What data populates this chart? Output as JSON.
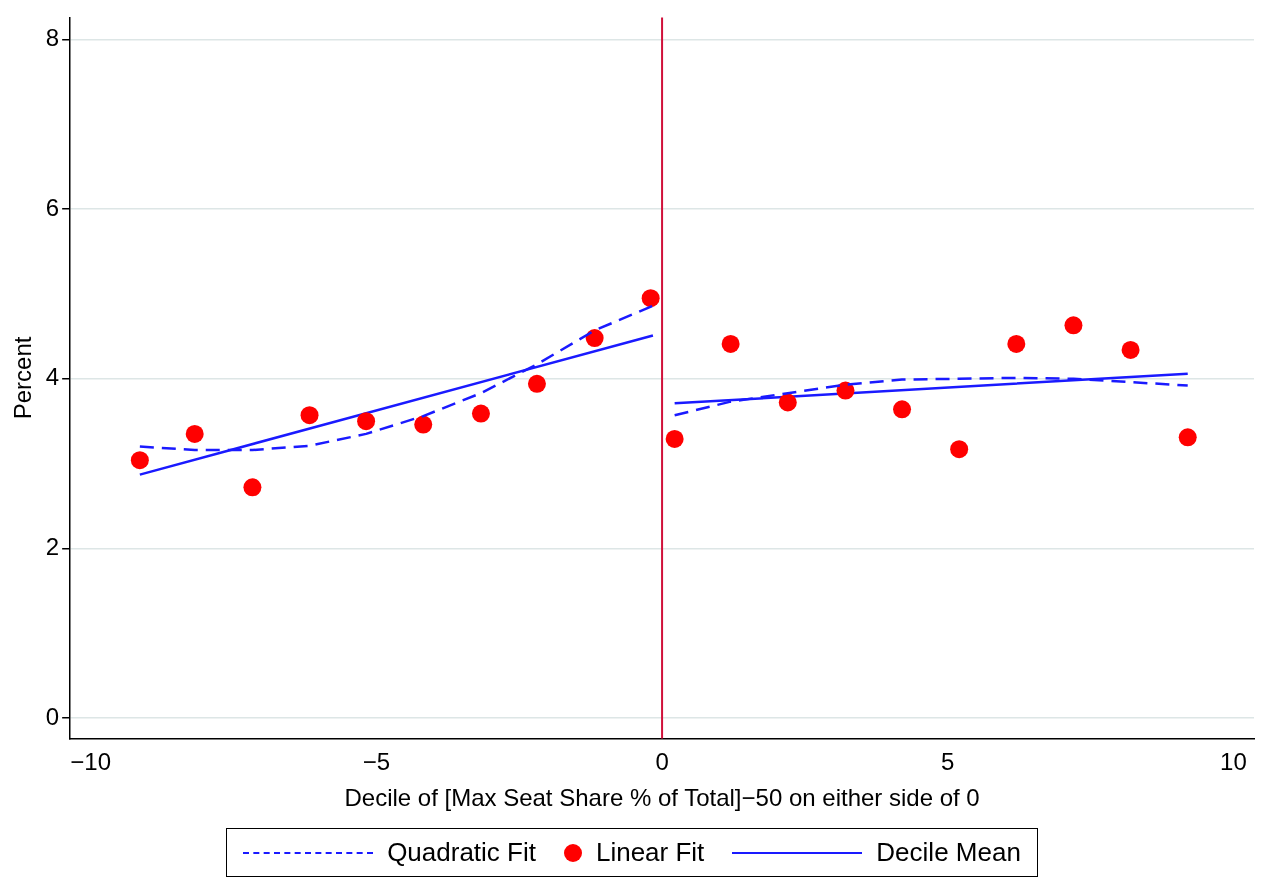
{
  "chart_data": {
    "type": "scatter",
    "xlabel": "Decile of [Max Seat Share % of Total]−50 on either side of 0",
    "ylabel": "Percent",
    "xlim": [
      -10.36,
      10.36
    ],
    "ylim": [
      -0.24,
      8.26
    ],
    "xticks": [
      {
        "value": -10,
        "label": "−10"
      },
      {
        "value": -5,
        "label": "−5"
      },
      0,
      5,
      10
    ],
    "yticks": [
      0,
      2,
      4,
      6,
      8
    ],
    "grid": "y",
    "legend": "bottom",
    "ref_lines": [
      {
        "axis": "x",
        "value": 0,
        "color": "#d0103a"
      }
    ],
    "series": [
      {
        "name": "Quadratic Fit",
        "type": "line",
        "line_style": "dashed",
        "marker": "none",
        "color": "#1a1aff",
        "x": [
          -9.14,
          -8.18,
          -7.17,
          -6.17,
          -5.18,
          -4.18,
          -3.17,
          -2.19,
          -1.18,
          -0.16,
          0,
          0.22,
          1.2,
          2.2,
          3.21,
          4.2,
          5.2,
          6.2,
          7.2,
          8.2,
          9.2
        ],
        "values": [
          3.2,
          3.16,
          3.16,
          3.21,
          3.35,
          3.56,
          3.83,
          4.17,
          4.57,
          4.86,
          null,
          3.57,
          3.73,
          3.83,
          3.93,
          3.99,
          4.0,
          4.01,
          4.0,
          3.96,
          3.92
        ]
      },
      {
        "name": "Linear Fit",
        "type": "scatter",
        "marker": "circle",
        "color": "#ff0000",
        "x": [
          -9.14,
          -8.18,
          -7.17,
          -6.17,
          -5.18,
          -4.18,
          -3.17,
          -2.19,
          -1.18,
          -0.2,
          0.22,
          1.2,
          2.2,
          3.21,
          4.2,
          5.2,
          6.2,
          7.2,
          8.2,
          9.2
        ],
        "values": [
          3.04,
          3.35,
          2.72,
          3.57,
          3.5,
          3.46,
          3.59,
          3.94,
          4.48,
          4.95,
          3.29,
          4.41,
          3.72,
          3.86,
          3.64,
          3.17,
          4.41,
          4.63,
          4.34,
          3.31
        ]
      },
      {
        "name": "Decile Mean",
        "type": "line",
        "line_style": "solid",
        "marker": "none",
        "color": "#1a1aff",
        "x": [
          -9.14,
          -0.16,
          0,
          0.22,
          9.2
        ],
        "values": [
          2.87,
          4.51,
          null,
          3.71,
          4.06
        ]
      }
    ]
  }
}
